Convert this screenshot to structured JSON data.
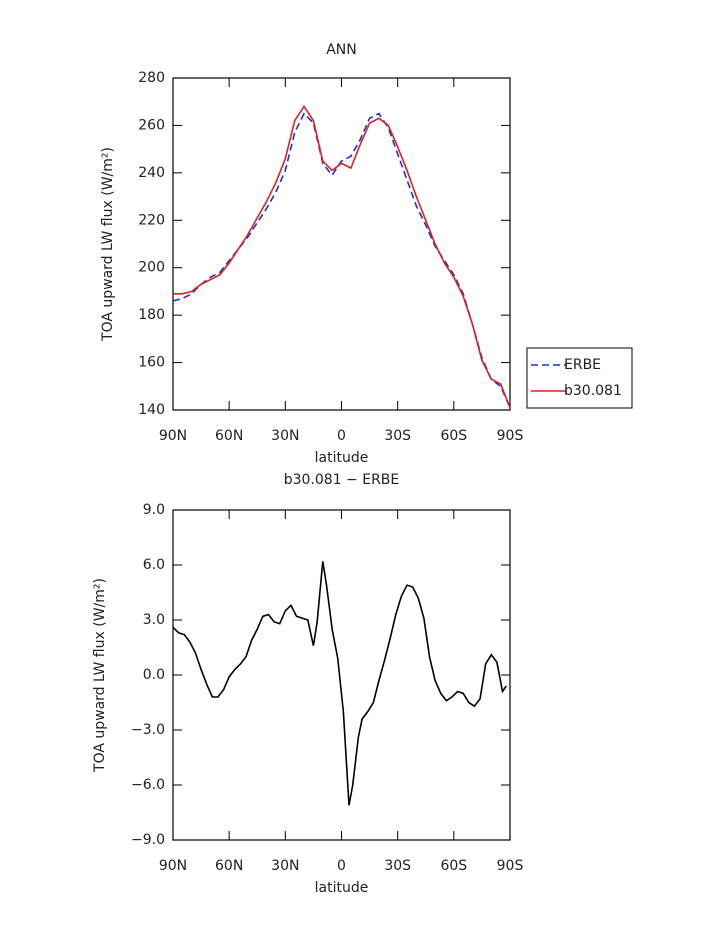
{
  "chart_data": [
    {
      "type": "line",
      "title": "ANN",
      "xlabel": "latitude",
      "ylabel": "TOA upward LW flux (W/m²)",
      "x": [
        90,
        85,
        80,
        75,
        70,
        65,
        60,
        55,
        50,
        45,
        40,
        35,
        30,
        25,
        20,
        15,
        10,
        5,
        0,
        -5,
        -10,
        -15,
        -20,
        -25,
        -30,
        -35,
        -40,
        -45,
        -50,
        -55,
        -60,
        -65,
        -70,
        -75,
        -80,
        -85,
        -90
      ],
      "series": [
        {
          "name": "ERBE",
          "color": "#1f2fd6",
          "linestyle": "dashed",
          "values": [
            186,
            187,
            189,
            193,
            196,
            198,
            203,
            208,
            213,
            219,
            225,
            232,
            241,
            257,
            265,
            261,
            244,
            239,
            245,
            247,
            254,
            263,
            265,
            259,
            248,
            237,
            226,
            218,
            209,
            203,
            197,
            189,
            176,
            162,
            153,
            150,
            141
          ]
        },
        {
          "name": "b30.081",
          "color": "#e02020",
          "linestyle": "solid",
          "values": [
            189,
            189,
            190,
            193,
            195,
            197,
            202,
            208,
            214,
            221,
            228,
            236,
            246,
            262,
            268,
            262,
            245,
            241,
            244,
            242,
            252,
            261,
            263,
            260,
            251,
            241,
            230,
            220,
            210,
            202,
            196,
            188,
            176,
            161,
            153,
            151,
            141
          ]
        }
      ],
      "xlim": [
        90,
        -90
      ],
      "xticks": [
        {
          "value": 90,
          "label": "90N"
        },
        {
          "value": 60,
          "label": "60N"
        },
        {
          "value": 30,
          "label": "30N"
        },
        0,
        {
          "value": -30,
          "label": "30S"
        },
        {
          "value": -60,
          "label": "60S"
        },
        {
          "value": -90,
          "label": "90S"
        }
      ],
      "ylim": [
        140,
        280
      ],
      "yticks": [
        140,
        160,
        180,
        200,
        220,
        240,
        260,
        280
      ],
      "legend": "right"
    },
    {
      "type": "line",
      "title": "b30.081 − ERBE",
      "xlabel": "latitude",
      "ylabel": "TOA upward LW flux (W/m²)",
      "x": [
        90,
        87,
        84,
        81,
        78,
        75,
        72,
        69,
        66,
        63,
        60,
        57,
        54,
        51,
        48,
        45,
        42,
        39,
        36,
        33,
        30,
        27,
        24,
        21,
        18,
        15,
        13,
        10,
        8,
        5,
        2,
        -1,
        -4,
        -6,
        -9,
        -11,
        -14,
        -17,
        -20,
        -23,
        -26,
        -29,
        -32,
        -35,
        -38,
        -41,
        -44,
        -47,
        -50,
        -53,
        -56,
        -59,
        -62,
        -65,
        -68,
        -71,
        -74,
        -77,
        -80,
        -83,
        -86,
        -88
      ],
      "series": [
        {
          "color": "#000000",
          "linestyle": "solid",
          "values": [
            2.6,
            2.3,
            2.2,
            1.8,
            1.2,
            0.3,
            -0.5,
            -1.2,
            -1.2,
            -0.8,
            -0.1,
            0.3,
            0.6,
            1.0,
            1.9,
            2.5,
            3.2,
            3.3,
            2.9,
            2.8,
            3.5,
            3.8,
            3.2,
            3.1,
            3.0,
            1.6,
            2.9,
            6.2,
            4.9,
            2.5,
            0.9,
            -2.0,
            -7.1,
            -6.0,
            -3.4,
            -2.4,
            -2.0,
            -1.5,
            -0.3,
            0.8,
            2.0,
            3.3,
            4.3,
            4.9,
            4.8,
            4.2,
            3.1,
            1.0,
            -0.3,
            -1.0,
            -1.4,
            -1.2,
            -0.9,
            -1.0,
            -1.5,
            -1.7,
            -1.3,
            0.6,
            1.1,
            0.7,
            -0.9,
            -0.6
          ]
        }
      ],
      "xlim": [
        90,
        -90
      ],
      "xticks": [
        {
          "value": 90,
          "label": "90N"
        },
        {
          "value": 60,
          "label": "60N"
        },
        {
          "value": 30,
          "label": "30N"
        },
        0,
        {
          "value": -30,
          "label": "30S"
        },
        {
          "value": -60,
          "label": "60S"
        },
        {
          "value": -90,
          "label": "90S"
        }
      ],
      "ylim": [
        -9,
        9
      ],
      "yticks": [
        {
          "value": -9,
          "label": "−9.0"
        },
        {
          "value": -6,
          "label": "−6.0"
        },
        {
          "value": -3,
          "label": "−3.0"
        },
        {
          "value": 0,
          "label": "0.0"
        },
        {
          "value": 3,
          "label": "3.0"
        },
        {
          "value": 6,
          "label": "6.0"
        },
        {
          "value": 9,
          "label": "9.0"
        }
      ]
    }
  ]
}
